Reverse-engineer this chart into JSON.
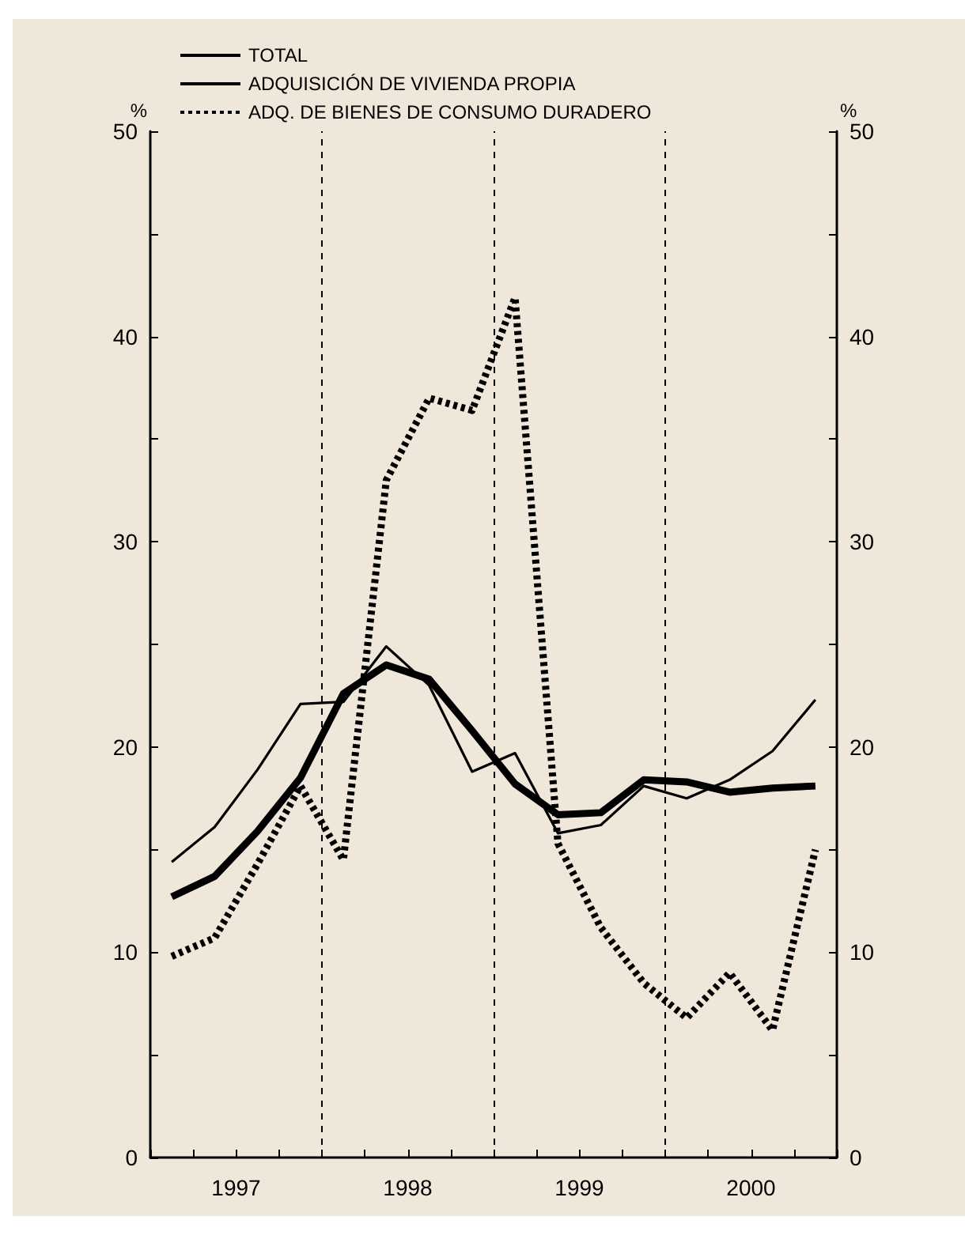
{
  "chart_data": {
    "type": "line",
    "x": [
      1997.125,
      1997.375,
      1997.625,
      1997.875,
      1998.125,
      1998.375,
      1998.625,
      1998.875,
      1999.125,
      1999.375,
      1999.625,
      1999.875,
      2000.125,
      2000.375,
      2000.625,
      2000.875
    ],
    "series": [
      {
        "name": "TOTAL",
        "color": "#000000",
        "line_style": "solid",
        "values": [
          12.7,
          13.7,
          15.9,
          18.5,
          22.6,
          24.0,
          23.3,
          20.8,
          18.2,
          16.7,
          16.8,
          18.4,
          18.3,
          17.8,
          18.0,
          18.1
        ]
      },
      {
        "name": "ADQUISICIÓN DE VIVIENDA PROPIA",
        "color": "#000000",
        "line_style": "solid",
        "values": [
          14.4,
          16.1,
          18.9,
          22.1,
          22.2,
          24.9,
          23.0,
          18.8,
          19.7,
          15.8,
          16.2,
          18.1,
          17.5,
          18.4,
          19.8,
          22.3
        ]
      },
      {
        "name": "ADQ. DE BIENES DE CONSUMO DURADERO",
        "color": "#000000",
        "line_style": "dotted",
        "values": [
          9.8,
          10.7,
          14.3,
          18.1,
          14.5,
          33.0,
          37.0,
          36.4,
          41.9,
          15.3,
          11.2,
          8.5,
          6.8,
          9.0,
          6.2,
          15.0
        ]
      }
    ],
    "xlim": [
      1997,
      2001
    ],
    "xticks": [
      {
        "value": 1997,
        "label": null
      },
      {
        "value": 1997.25,
        "label": null
      },
      {
        "value": 1997.5,
        "label": "1997"
      },
      {
        "value": 1997.75,
        "label": null
      },
      {
        "value": 1998,
        "label": null
      },
      {
        "value": 1998.25,
        "label": null
      },
      {
        "value": 1998.5,
        "label": "1998"
      },
      {
        "value": 1998.75,
        "label": null
      },
      {
        "value": 1999,
        "label": null
      },
      {
        "value": 1999.25,
        "label": null
      },
      {
        "value": 1999.5,
        "label": "1999"
      },
      {
        "value": 1999.75,
        "label": null
      },
      {
        "value": 2000,
        "label": null
      },
      {
        "value": 2000.25,
        "label": null
      },
      {
        "value": 2000.5,
        "label": "2000"
      },
      {
        "value": 2000.75,
        "label": null
      },
      {
        "value": 2001,
        "label": null
      }
    ],
    "ylim": [
      0,
      50
    ],
    "yticks": [
      0,
      {
        "value": 5,
        "label": null
      },
      10,
      {
        "value": 15,
        "label": null
      },
      20,
      {
        "value": 25,
        "label": null
      },
      30,
      {
        "value": 35,
        "label": null
      },
      40,
      {
        "value": 45,
        "label": null
      },
      50
    ],
    "y2lim": [
      0,
      50
    ],
    "y2ticks": [
      0,
      {
        "value": 5,
        "label": null
      },
      10,
      {
        "value": 15,
        "label": null
      },
      20,
      {
        "value": 25,
        "label": null
      },
      30,
      {
        "value": 35,
        "label": null
      },
      40,
      {
        "value": 45,
        "label": null
      },
      50
    ],
    "ylabel": "%",
    "y2label": "%",
    "ref_lines": [
      {
        "axis": "x",
        "value": 1998,
        "line_style": "dashed"
      },
      {
        "axis": "x",
        "value": 1999,
        "line_style": "dashed"
      },
      {
        "axis": "x",
        "value": 2000,
        "line_style": "dashed"
      }
    ],
    "grid": false,
    "marker": "none",
    "legend": "top"
  }
}
